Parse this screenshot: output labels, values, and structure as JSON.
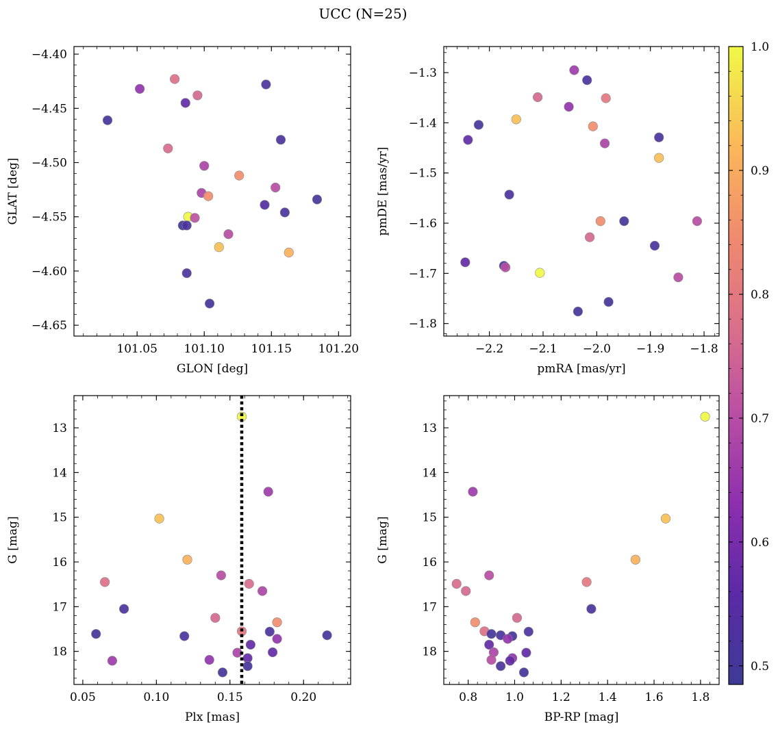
{
  "title": "UCC (N=25)",
  "colorbar": {
    "range": [
      0.485,
      1.0
    ],
    "ticks": [
      0.5,
      0.6,
      0.7,
      0.8,
      0.9,
      1.0
    ],
    "tick_labels": [
      "0.5",
      "0.6",
      "0.7",
      "0.8",
      "0.9",
      "1.0"
    ],
    "colormap": "plasma"
  },
  "chart_data": [
    {
      "type": "scatter",
      "name": "glon-glat",
      "xlabel": "GLON [deg]",
      "ylabel": "GLAT [deg]",
      "xlim": [
        101.003,
        101.209
      ],
      "ylim": [
        -4.66,
        -4.393
      ],
      "xticks": [
        101.05,
        101.1,
        101.15,
        101.2
      ],
      "xtick_labels": [
        "101.05",
        "101.10",
        "101.15",
        "101.20"
      ],
      "yticks": [
        -4.4,
        -4.45,
        -4.5,
        -4.55,
        -4.6,
        -4.65
      ],
      "ytick_labels": [
        "−4.40",
        "−4.45",
        "−4.50",
        "−4.55",
        "−4.60",
        "−4.65"
      ],
      "x": [
        101.052,
        101.078,
        101.095,
        101.146,
        101.086,
        101.028,
        101.157,
        101.073,
        101.1,
        101.126,
        101.153,
        101.098,
        101.103,
        101.145,
        101.16,
        101.184,
        101.088,
        101.093,
        101.084,
        101.087,
        101.118,
        101.111,
        101.163,
        101.087,
        101.104
      ],
      "y": [
        -4.432,
        -4.423,
        -4.438,
        -4.428,
        -4.445,
        -4.461,
        -4.479,
        -4.487,
        -4.503,
        -4.512,
        -4.523,
        -4.528,
        -4.531,
        -4.539,
        -4.546,
        -4.534,
        -4.55,
        -4.551,
        -4.558,
        -4.558,
        -4.566,
        -4.578,
        -4.583,
        -4.602,
        -4.63
      ],
      "color": [
        0.64,
        0.78,
        0.76,
        0.52,
        0.57,
        0.51,
        0.52,
        0.77,
        0.68,
        0.85,
        0.7,
        0.68,
        0.85,
        0.54,
        0.52,
        0.5,
        1.0,
        0.71,
        0.5,
        0.52,
        0.7,
        0.93,
        0.91,
        0.52,
        0.51
      ]
    },
    {
      "type": "scatter",
      "name": "pm",
      "xlabel": "pmRA [mas/yr]",
      "ylabel": "pmDE [mas/yr]",
      "xlim": [
        -2.285,
        -1.772
      ],
      "ylim": [
        -1.825,
        -1.248
      ],
      "xticks": [
        -2.2,
        -2.1,
        -2.0,
        -1.9,
        -1.8
      ],
      "xtick_labels": [
        "−2.2",
        "−2.1",
        "−2.0",
        "−1.9",
        "−1.8"
      ],
      "yticks": [
        -1.3,
        -1.4,
        -1.5,
        -1.6,
        -1.7,
        -1.8
      ],
      "ytick_labels": [
        "−1.3",
        "−1.4",
        "−1.5",
        "−1.6",
        "−1.7",
        "−1.8"
      ],
      "x": [
        -2.042,
        -2.018,
        -2.11,
        -1.983,
        -2.052,
        -2.22,
        -2.24,
        -2.15,
        -2.007,
        -1.985,
        -1.884,
        -1.884,
        -2.163,
        -1.993,
        -1.949,
        -1.813,
        -2.013,
        -1.892,
        -2.245,
        -2.173,
        -2.17,
        -2.106,
        -1.848,
        -1.978,
        -2.035
      ],
      "y": [
        -1.295,
        -1.315,
        -1.349,
        -1.351,
        -1.368,
        -1.404,
        -1.434,
        -1.393,
        -1.407,
        -1.441,
        -1.429,
        -1.47,
        -1.543,
        -1.596,
        -1.596,
        -1.596,
        -1.628,
        -1.645,
        -1.678,
        -1.685,
        -1.688,
        -1.699,
        -1.708,
        -1.757,
        -1.776
      ],
      "color": [
        0.66,
        0.52,
        0.76,
        0.8,
        0.64,
        0.51,
        0.57,
        0.93,
        0.85,
        0.68,
        0.52,
        0.93,
        0.52,
        0.85,
        0.51,
        0.7,
        0.76,
        0.52,
        0.57,
        0.52,
        0.7,
        1.0,
        0.7,
        0.51,
        0.51
      ]
    },
    {
      "type": "scatter",
      "name": "plx-g",
      "xlabel": "Plx [mas]",
      "ylabel": "G [mag]",
      "xlim": [
        0.044,
        0.232
      ],
      "ylim": [
        18.74,
        12.28
      ],
      "y_inverted": true,
      "vline": 0.158,
      "vline_style": "dotted",
      "xticks": [
        0.05,
        0.1,
        0.15,
        0.2
      ],
      "xtick_labels": [
        "0.05",
        "0.10",
        "0.15",
        "0.20"
      ],
      "yticks": [
        13,
        14,
        15,
        16,
        17,
        18
      ],
      "ytick_labels": [
        "13",
        "14",
        "15",
        "16",
        "17",
        "18"
      ],
      "x": [
        0.158,
        0.176,
        0.102,
        0.121,
        0.065,
        0.144,
        0.163,
        0.172,
        0.078,
        0.14,
        0.182,
        0.158,
        0.059,
        0.119,
        0.216,
        0.177,
        0.182,
        0.164,
        0.179,
        0.155,
        0.162,
        0.07,
        0.136,
        0.162,
        0.145
      ],
      "y": [
        12.75,
        14.43,
        15.03,
        15.95,
        16.45,
        16.3,
        16.49,
        16.65,
        17.05,
        17.25,
        17.35,
        17.55,
        17.61,
        17.66,
        17.64,
        17.56,
        17.72,
        17.85,
        18.02,
        18.03,
        18.15,
        18.21,
        18.19,
        18.33,
        18.47
      ],
      "color": [
        1.0,
        0.66,
        0.93,
        0.91,
        0.78,
        0.7,
        0.77,
        0.68,
        0.52,
        0.76,
        0.85,
        0.8,
        0.51,
        0.52,
        0.51,
        0.52,
        0.64,
        0.57,
        0.57,
        0.68,
        0.57,
        0.66,
        0.64,
        0.51,
        0.51
      ]
    },
    {
      "type": "scatter",
      "name": "color-mag",
      "xlabel": "BP-RP [mag]",
      "ylabel": "G [mag]",
      "xlim": [
        0.695,
        1.88
      ],
      "ylim": [
        18.74,
        12.28
      ],
      "y_inverted": true,
      "xticks": [
        0.8,
        1.0,
        1.2,
        1.4,
        1.6,
        1.8
      ],
      "xtick_labels": [
        "0.8",
        "1.0",
        "1.2",
        "1.4",
        "1.6",
        "1.8"
      ],
      "yticks": [
        13,
        14,
        15,
        16,
        17,
        18
      ],
      "ytick_labels": [
        "13",
        "14",
        "15",
        "16",
        "17",
        "18"
      ],
      "x": [
        1.82,
        0.82,
        1.65,
        1.52,
        0.75,
        1.31,
        0.79,
        0.89,
        1.33,
        1.01,
        0.83,
        0.87,
        0.9,
        0.94,
        0.99,
        1.06,
        0.97,
        0.89,
        0.91,
        1.05,
        0.99,
        0.9,
        0.98,
        0.94,
        1.04
      ],
      "y": [
        12.75,
        14.43,
        15.03,
        15.95,
        16.49,
        16.45,
        16.65,
        16.3,
        17.05,
        17.25,
        17.35,
        17.55,
        17.61,
        17.64,
        17.66,
        17.56,
        17.72,
        17.85,
        18.02,
        18.03,
        18.15,
        18.19,
        18.21,
        18.33,
        18.47
      ],
      "color": [
        1.0,
        0.66,
        0.93,
        0.91,
        0.77,
        0.8,
        0.76,
        0.7,
        0.52,
        0.76,
        0.85,
        0.78,
        0.51,
        0.52,
        0.51,
        0.52,
        0.64,
        0.57,
        0.68,
        0.57,
        0.64,
        0.7,
        0.57,
        0.52,
        0.51
      ]
    }
  ]
}
